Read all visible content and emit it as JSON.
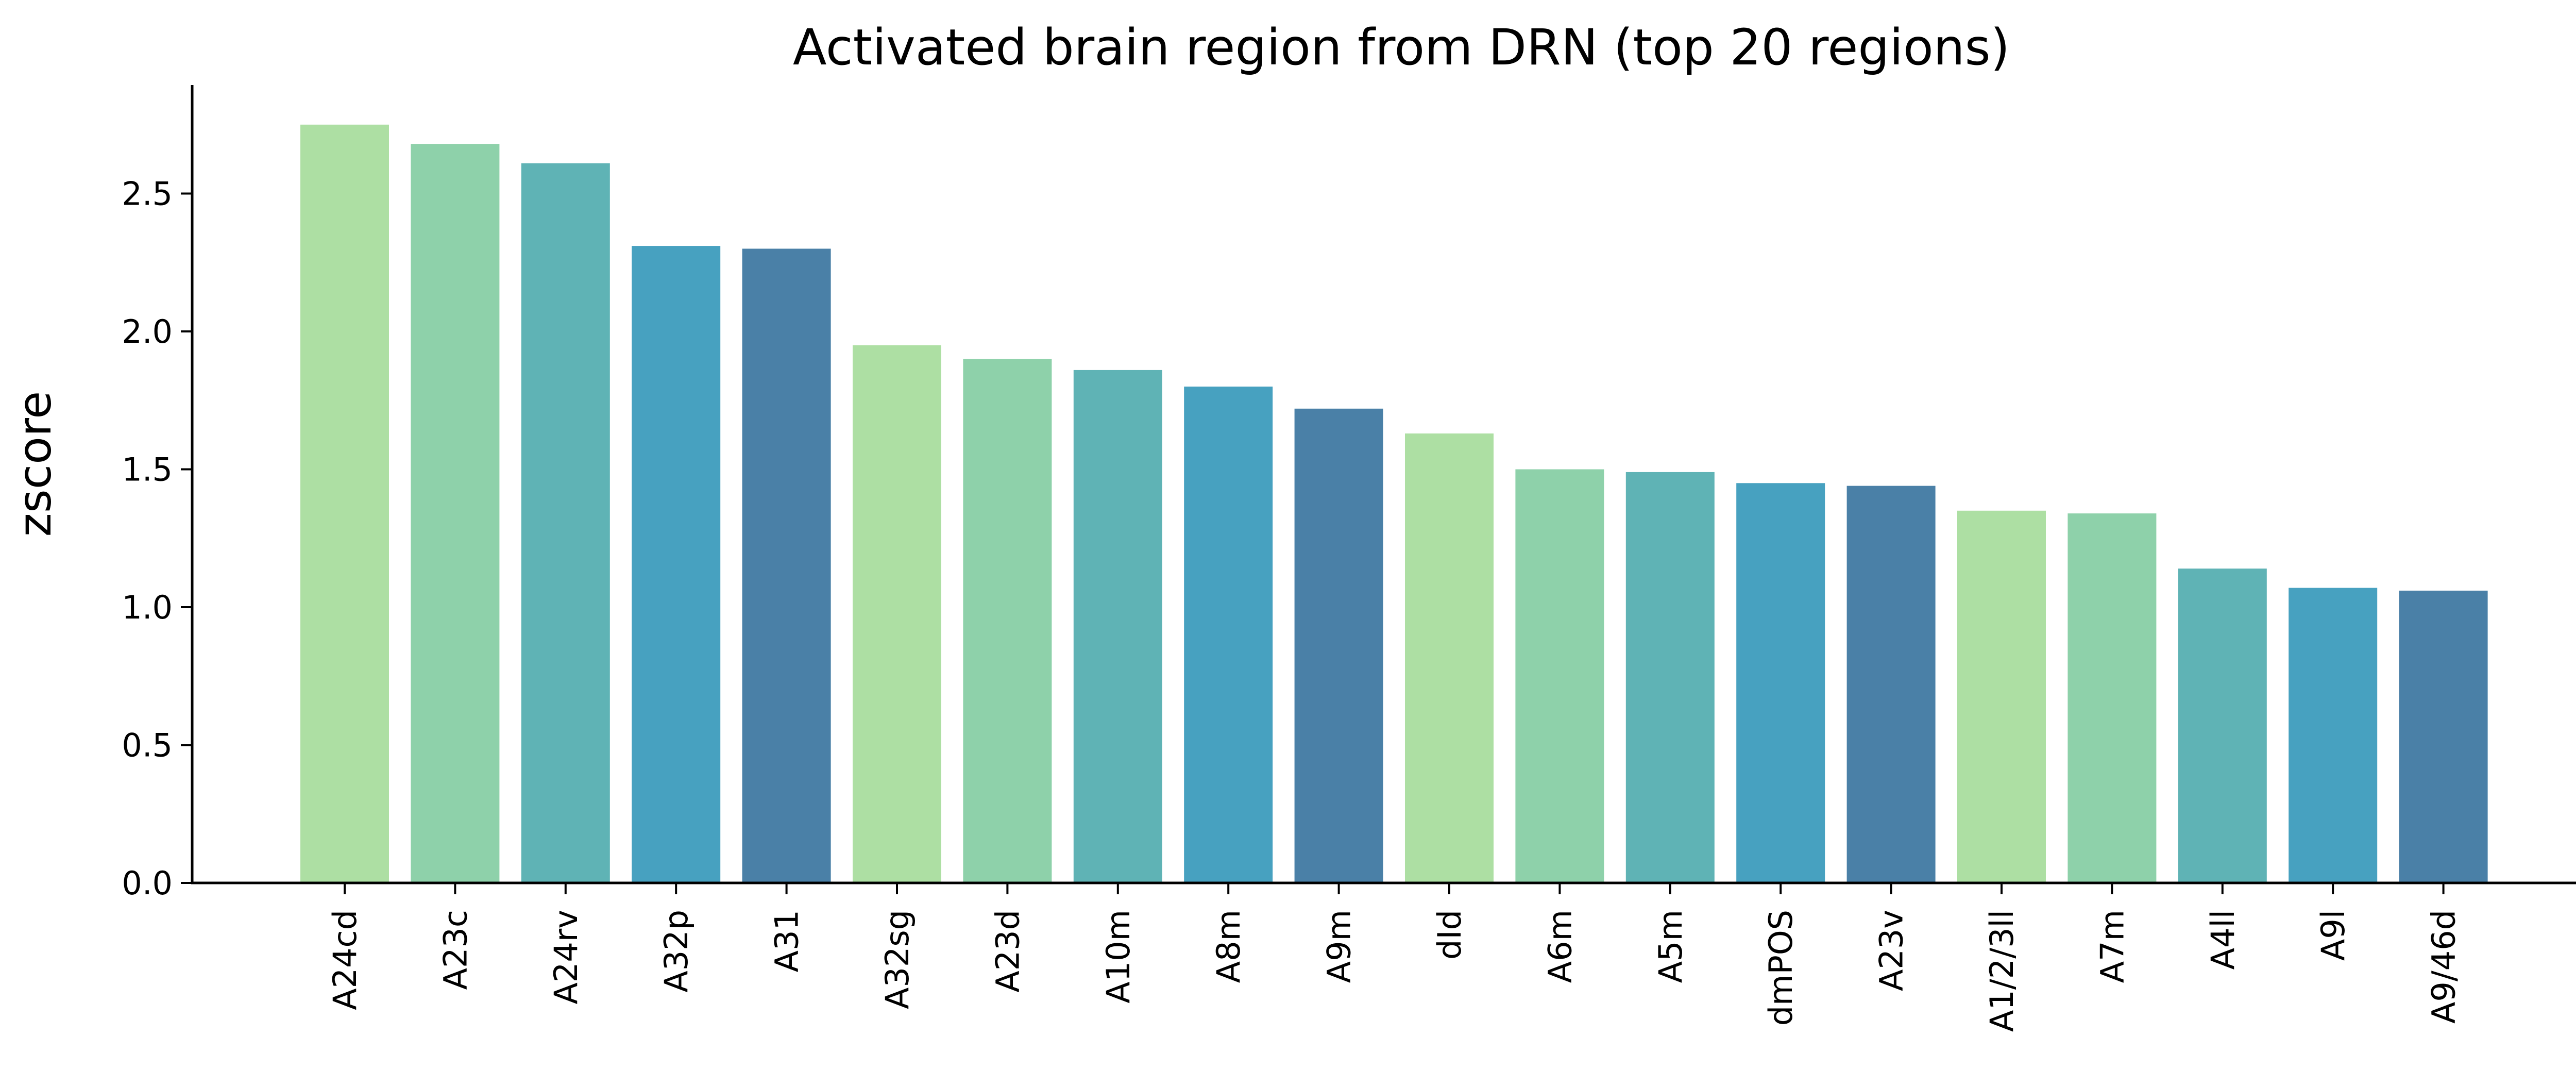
{
  "chart_data": {
    "type": "bar",
    "title": "Activated brain region from DRN (top 20 regions)",
    "xlabel": "",
    "ylabel": "zscore",
    "ylim": [
      0,
      2.9
    ],
    "yticks": [
      "0.0",
      "0.5",
      "1.0",
      "1.5",
      "2.0",
      "2.5"
    ],
    "categories": [
      "A24cd",
      "A23c",
      "A24rv",
      "A32p",
      "A31",
      "A32sg",
      "A23d",
      "A10m",
      "A8m",
      "A9m",
      "dId",
      "A6m",
      "A5m",
      "dmPOS",
      "A23v",
      "A1/2/3ll",
      "A7m",
      "A4ll",
      "A9l",
      "A9/46d"
    ],
    "values": [
      2.75,
      2.68,
      2.61,
      2.31,
      2.3,
      1.95,
      1.9,
      1.86,
      1.8,
      1.72,
      1.63,
      1.5,
      1.49,
      1.45,
      1.44,
      1.35,
      1.34,
      1.14,
      1.07,
      1.06
    ],
    "colors": [
      "#addfa3",
      "#8ed1aa",
      "#5fb3b5",
      "#47a1c0",
      "#4a80a7"
    ],
    "grid": false,
    "legend": "none",
    "spines": [
      "left",
      "bottom"
    ]
  }
}
